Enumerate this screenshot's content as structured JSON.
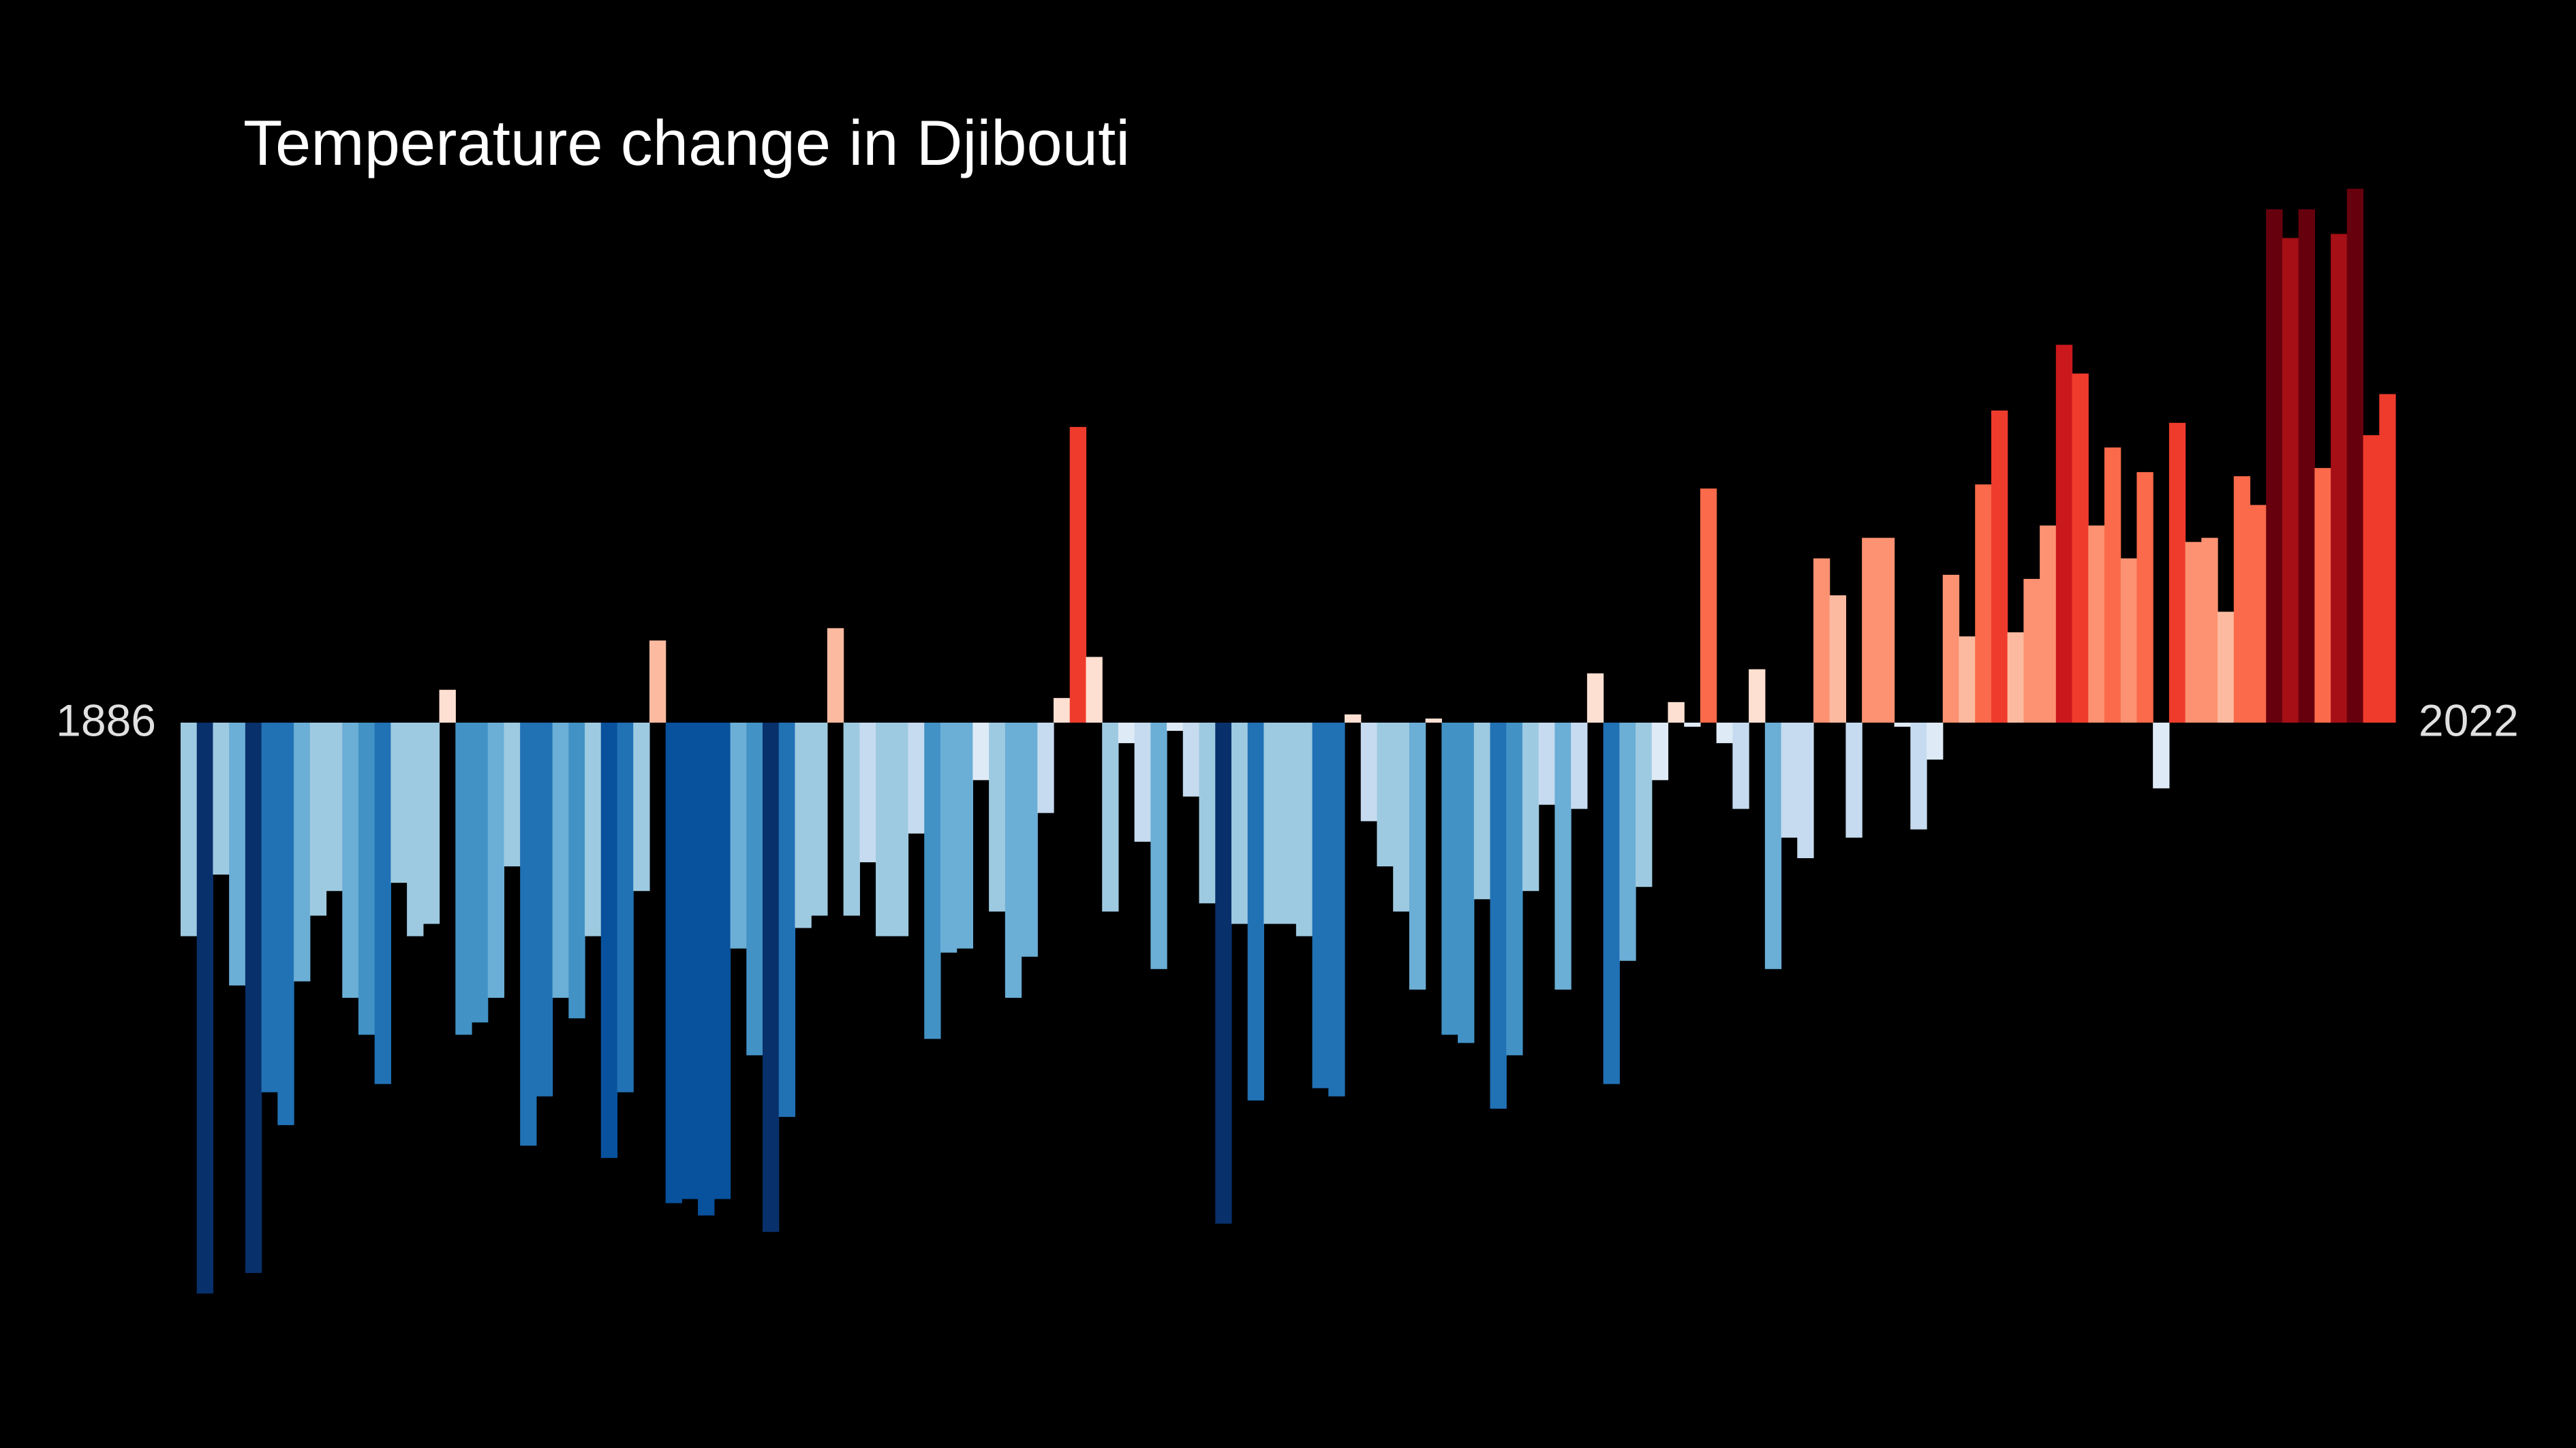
{
  "chart_data": {
    "type": "bar",
    "title": "Temperature change in Djibouti",
    "categories": [
      "1886",
      null,
      null,
      null,
      null,
      null,
      null,
      null,
      null,
      null,
      null,
      null,
      null,
      null,
      null,
      null,
      null,
      null,
      null,
      null,
      null,
      null,
      null,
      null,
      null,
      null,
      null,
      null,
      null,
      null,
      null,
      null,
      null,
      null,
      null,
      null,
      null,
      null,
      null,
      null,
      null,
      null,
      null,
      null,
      null,
      null,
      null,
      null,
      null,
      null,
      null,
      null,
      null,
      null,
      null,
      null,
      null,
      null,
      null,
      null,
      null,
      null,
      null,
      null,
      null,
      null,
      null,
      null,
      null,
      null,
      null,
      null,
      null,
      null,
      null,
      null,
      null,
      null,
      null,
      null,
      null,
      null,
      null,
      null,
      null,
      null,
      null,
      null,
      null,
      null,
      null,
      null,
      null,
      null,
      null,
      null,
      null,
      null,
      null,
      null,
      null,
      null,
      null,
      null,
      null,
      null,
      null,
      null,
      null,
      null,
      null,
      null,
      null,
      null,
      null,
      null,
      null,
      null,
      null,
      null,
      null,
      null,
      null,
      null,
      null,
      null,
      null,
      null,
      null,
      null,
      null,
      null,
      null,
      null,
      null,
      null,
      "2022"
    ],
    "values": [
      -0.52,
      -1.39,
      -0.37,
      -0.64,
      -1.34,
      -0.9,
      -0.98,
      -0.63,
      -0.47,
      -0.41,
      -0.67,
      -0.76,
      -0.88,
      -0.39,
      -0.52,
      -0.49,
      0.08,
      -0.76,
      -0.73,
      -0.67,
      -0.35,
      -1.03,
      -0.91,
      -0.67,
      -0.72,
      -0.52,
      -1.06,
      -0.9,
      -0.41,
      0.2,
      -1.17,
      -1.16,
      -1.2,
      -1.16,
      -0.55,
      -0.81,
      -1.24,
      -0.96,
      -0.5,
      -0.47,
      0.23,
      -0.47,
      -0.34,
      -0.52,
      -0.52,
      -0.27,
      -0.77,
      -0.56,
      -0.55,
      -0.14,
      -0.46,
      -0.67,
      -0.57,
      -0.22,
      0.06,
      0.72,
      0.16,
      -0.46,
      -0.05,
      -0.29,
      -0.6,
      -0.02,
      -0.18,
      -0.44,
      -1.22,
      -0.49,
      -0.92,
      -0.49,
      -0.49,
      -0.52,
      -0.89,
      -0.91,
      0.02,
      -0.24,
      -0.35,
      -0.46,
      -0.65,
      0.01,
      -0.76,
      -0.78,
      -0.43,
      -0.94,
      -0.81,
      -0.41,
      -0.2,
      -0.65,
      -0.21,
      0.12,
      -0.88,
      -0.58,
      -0.4,
      -0.14,
      0.05,
      -0.01,
      0.57,
      -0.05,
      -0.21,
      0.13,
      -0.6,
      -0.28,
      -0.33,
      0.4,
      0.31,
      -0.28,
      0.45,
      0.45,
      -0.01,
      -0.26,
      -0.09,
      0.36,
      0.21,
      0.58,
      0.76,
      0.22,
      0.35,
      0.48,
      0.92,
      0.85,
      0.48,
      0.67,
      0.4,
      0.61,
      -0.16,
      0.73,
      0.44,
      0.45,
      0.27,
      0.6,
      0.53,
      1.25,
      1.18,
      1.25,
      0.62,
      1.19,
      1.3,
      0.7,
      0.8
    ]
  }
}
